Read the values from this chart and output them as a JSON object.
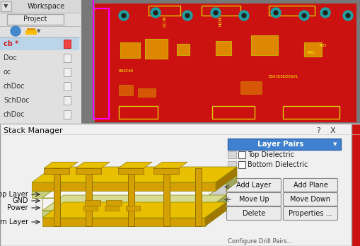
{
  "window_title": "Stack Manager",
  "question_mark": "?",
  "close_x": "X",
  "layer_labels": [
    "Top Layer",
    "GND",
    "Power",
    "Bottom Layer"
  ],
  "right_panel": {
    "dropdown_text": "Layer Pairs",
    "dropdown_bg": "#4080d0",
    "checkboxes": [
      "Top Dielectric",
      "Bottom Dielectric"
    ],
    "buttons_row1": [
      "Add Layer",
      "Add Plane"
    ],
    "buttons_row2": [
      "Move Up",
      "Move Down"
    ],
    "buttons_row3": [
      "Delete",
      "Properties ..."
    ]
  },
  "stack_3d": {
    "copper_face": "#d4a000",
    "copper_top": "#e8c000",
    "copper_side": "#a07800",
    "diel_face": "#c8cc80",
    "diel_top": "#d8dc90",
    "diel_side": "#a0a860",
    "white_face": "#f4f4f4",
    "white_top": "#f8f8f8",
    "white_side": "#d0d0d0"
  }
}
